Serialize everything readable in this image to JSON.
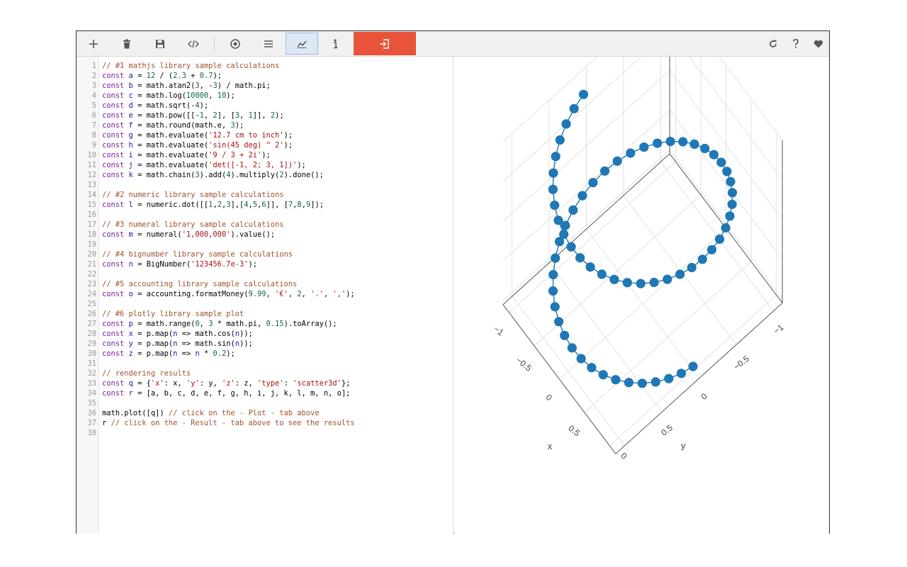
{
  "toolbar": {
    "buttons": [
      {
        "name": "add-button",
        "icon": "plus-icon"
      },
      {
        "name": "delete-button",
        "icon": "trash-icon"
      },
      {
        "name": "save-button",
        "icon": "floppy-disk-icon"
      },
      {
        "name": "embed-button",
        "icon": "code-icon"
      },
      {
        "name": "result-view-button",
        "icon": "target-icon"
      },
      {
        "name": "list-view-button",
        "icon": "menu-icon"
      },
      {
        "name": "plot-view-button",
        "icon": "chart-icon",
        "active": true
      },
      {
        "name": "info-button",
        "icon": "info-icon"
      }
    ],
    "run_button": {
      "icon": "run-enter-icon",
      "color": "#e8533a"
    },
    "right_buttons": [
      {
        "name": "reload-button",
        "icon": "refresh-icon"
      },
      {
        "name": "help-button",
        "icon": "question-icon"
      },
      {
        "name": "favorite-button",
        "icon": "heart-icon"
      }
    ]
  },
  "editor": {
    "lines": [
      [
        [
          "comment",
          "// #1 mathjs library sample calculations"
        ]
      ],
      [
        [
          "keyword",
          "const "
        ],
        [
          "var",
          "a"
        ],
        [
          "plain",
          " = "
        ],
        [
          "number",
          "12"
        ],
        [
          "plain",
          " / ("
        ],
        [
          "number",
          "2.3"
        ],
        [
          "plain",
          " + "
        ],
        [
          "number",
          "0.7"
        ],
        [
          "plain",
          ");"
        ]
      ],
      [
        [
          "keyword",
          "const "
        ],
        [
          "var",
          "b"
        ],
        [
          "plain",
          " = math.atan2("
        ],
        [
          "number",
          "3"
        ],
        [
          "plain",
          ", -"
        ],
        [
          "number",
          "3"
        ],
        [
          "plain",
          ") / math.pi;"
        ]
      ],
      [
        [
          "keyword",
          "const "
        ],
        [
          "var",
          "c"
        ],
        [
          "plain",
          " = math.log("
        ],
        [
          "number",
          "10000"
        ],
        [
          "plain",
          ", "
        ],
        [
          "number",
          "10"
        ],
        [
          "plain",
          ");"
        ]
      ],
      [
        [
          "keyword",
          "const "
        ],
        [
          "var",
          "d"
        ],
        [
          "plain",
          " = math.sqrt(-"
        ],
        [
          "number",
          "4"
        ],
        [
          "plain",
          ");"
        ]
      ],
      [
        [
          "keyword",
          "const "
        ],
        [
          "var",
          "e"
        ],
        [
          "plain",
          " = math.pow([[-"
        ],
        [
          "number",
          "1"
        ],
        [
          "plain",
          ", "
        ],
        [
          "number",
          "2"
        ],
        [
          "plain",
          "], ["
        ],
        [
          "number",
          "3"
        ],
        [
          "plain",
          ", "
        ],
        [
          "number",
          "1"
        ],
        [
          "plain",
          "]], "
        ],
        [
          "number",
          "2"
        ],
        [
          "plain",
          ");"
        ]
      ],
      [
        [
          "keyword",
          "const "
        ],
        [
          "var",
          "f"
        ],
        [
          "plain",
          " = math.round(math.e, "
        ],
        [
          "number",
          "3"
        ],
        [
          "plain",
          ");"
        ]
      ],
      [
        [
          "keyword",
          "const "
        ],
        [
          "var",
          "g"
        ],
        [
          "plain",
          " = math.evaluate("
        ],
        [
          "string",
          "'12.7 cm to inch'"
        ],
        [
          "plain",
          ");"
        ]
      ],
      [
        [
          "keyword",
          "const "
        ],
        [
          "var",
          "h"
        ],
        [
          "plain",
          " = math.evaluate("
        ],
        [
          "string",
          "'sin(45 deg) ^ 2'"
        ],
        [
          "plain",
          ");"
        ]
      ],
      [
        [
          "keyword",
          "const "
        ],
        [
          "var",
          "i"
        ],
        [
          "plain",
          " = math.evaluate("
        ],
        [
          "string",
          "'9 / 3 + 2i'"
        ],
        [
          "plain",
          ");"
        ]
      ],
      [
        [
          "keyword",
          "const "
        ],
        [
          "var",
          "j"
        ],
        [
          "plain",
          " = math.evaluate("
        ],
        [
          "string",
          "'det([-1, 2; 3, 1])'"
        ],
        [
          "plain",
          ");"
        ]
      ],
      [
        [
          "keyword",
          "const "
        ],
        [
          "var",
          "k"
        ],
        [
          "plain",
          " = math.chain("
        ],
        [
          "number",
          "3"
        ],
        [
          "plain",
          ").add("
        ],
        [
          "number",
          "4"
        ],
        [
          "plain",
          ").multiply("
        ],
        [
          "number",
          "2"
        ],
        [
          "plain",
          ").done();"
        ]
      ],
      [],
      [
        [
          "comment",
          "// #2 numeric library sample calculations"
        ]
      ],
      [
        [
          "keyword",
          "const "
        ],
        [
          "var",
          "l"
        ],
        [
          "plain",
          " = numeric.dot([["
        ],
        [
          "number",
          "1"
        ],
        [
          "plain",
          ","
        ],
        [
          "number",
          "2"
        ],
        [
          "plain",
          ","
        ],
        [
          "number",
          "3"
        ],
        [
          "plain",
          "],["
        ],
        [
          "number",
          "4"
        ],
        [
          "plain",
          ","
        ],
        [
          "number",
          "5"
        ],
        [
          "plain",
          ","
        ],
        [
          "number",
          "6"
        ],
        [
          "plain",
          "]], ["
        ],
        [
          "number",
          "7"
        ],
        [
          "plain",
          ","
        ],
        [
          "number",
          "8"
        ],
        [
          "plain",
          ","
        ],
        [
          "number",
          "9"
        ],
        [
          "plain",
          "]);"
        ]
      ],
      [],
      [
        [
          "comment",
          "// #3 numeral library sample calculations"
        ]
      ],
      [
        [
          "keyword",
          "const "
        ],
        [
          "var",
          "m"
        ],
        [
          "plain",
          " = numeral("
        ],
        [
          "string",
          "'1,000,000'"
        ],
        [
          "plain",
          ").value();"
        ]
      ],
      [],
      [
        [
          "comment",
          "// #4 bignumber library sample calculations"
        ]
      ],
      [
        [
          "keyword",
          "const "
        ],
        [
          "var",
          "n"
        ],
        [
          "plain",
          " = BigNumber("
        ],
        [
          "string",
          "'123456.7e-3'"
        ],
        [
          "plain",
          ");"
        ]
      ],
      [],
      [
        [
          "comment",
          "// #5 accounting library sample calculations"
        ]
      ],
      [
        [
          "keyword",
          "const "
        ],
        [
          "var",
          "o"
        ],
        [
          "plain",
          " = accounting.formatMoney("
        ],
        [
          "number",
          "9.99"
        ],
        [
          "plain",
          ", "
        ],
        [
          "string",
          "'€'"
        ],
        [
          "plain",
          ", "
        ],
        [
          "number",
          "2"
        ],
        [
          "plain",
          ", "
        ],
        [
          "string",
          "'.'"
        ],
        [
          "plain",
          ", "
        ],
        [
          "string",
          "','"
        ],
        [
          "plain",
          ");"
        ]
      ],
      [],
      [
        [
          "comment",
          "// #6 plotly library sample plot"
        ]
      ],
      [
        [
          "keyword",
          "const "
        ],
        [
          "var",
          "p"
        ],
        [
          "plain",
          " = math.range("
        ],
        [
          "number",
          "0"
        ],
        [
          "plain",
          ", "
        ],
        [
          "number",
          "3"
        ],
        [
          "plain",
          " * math.pi, "
        ],
        [
          "number",
          "0.15"
        ],
        [
          "plain",
          ").toArray();"
        ]
      ],
      [
        [
          "keyword",
          "const "
        ],
        [
          "var",
          "x"
        ],
        [
          "plain",
          " = p.map("
        ],
        [
          "var",
          "n"
        ],
        [
          "plain",
          " => math.cos("
        ],
        [
          "var",
          "n"
        ],
        [
          "plain",
          "));"
        ]
      ],
      [
        [
          "keyword",
          "const "
        ],
        [
          "var",
          "y"
        ],
        [
          "plain",
          " = p.map("
        ],
        [
          "var",
          "n"
        ],
        [
          "plain",
          " => math.sin("
        ],
        [
          "var",
          "n"
        ],
        [
          "plain",
          "));"
        ]
      ],
      [
        [
          "keyword",
          "const "
        ],
        [
          "var",
          "z"
        ],
        [
          "plain",
          " = p.map("
        ],
        [
          "var",
          "n"
        ],
        [
          "plain",
          " => "
        ],
        [
          "var",
          "n"
        ],
        [
          "plain",
          " * "
        ],
        [
          "number",
          "0.2"
        ],
        [
          "plain",
          ");"
        ]
      ],
      [],
      [
        [
          "comment",
          "// rendering results"
        ]
      ],
      [
        [
          "keyword",
          "const "
        ],
        [
          "var",
          "q"
        ],
        [
          "plain",
          " = {"
        ],
        [
          "string",
          "'x'"
        ],
        [
          "plain",
          ": x, "
        ],
        [
          "string",
          "'y'"
        ],
        [
          "plain",
          ": y, "
        ],
        [
          "string",
          "'z'"
        ],
        [
          "plain",
          ": z, "
        ],
        [
          "string",
          "'type'"
        ],
        [
          "plain",
          ": "
        ],
        [
          "string",
          "'scatter3d'"
        ],
        [
          "plain",
          "};"
        ]
      ],
      [
        [
          "keyword",
          "const "
        ],
        [
          "var",
          "r"
        ],
        [
          "plain",
          " = [a, b, c, d, e, f, g, h, i, j, k, l, m, n, o];"
        ]
      ],
      [],
      [
        [
          "plain",
          "math.plot([q]) "
        ],
        [
          "comment",
          "// click on the - Plot - tab above"
        ]
      ],
      [
        [
          "plain",
          "r "
        ],
        [
          "comment",
          "// click on the - Result - tab above to see the results"
        ]
      ],
      []
    ]
  },
  "plot": {
    "type": "scatter3d",
    "marker_color": "#1f77b4",
    "t_start": 0,
    "t_end": 9.42,
    "t_step": 0.15,
    "z_scale": 0.2,
    "x_axis_label": "x",
    "y_axis_label": "y",
    "x_tick_labels": [
      "−1",
      "−0.5",
      "0",
      "0.5"
    ],
    "y_tick_labels": [
      "−1",
      "−0.5",
      "0",
      "0.5"
    ],
    "z_tick_labels": [
      "0"
    ]
  }
}
